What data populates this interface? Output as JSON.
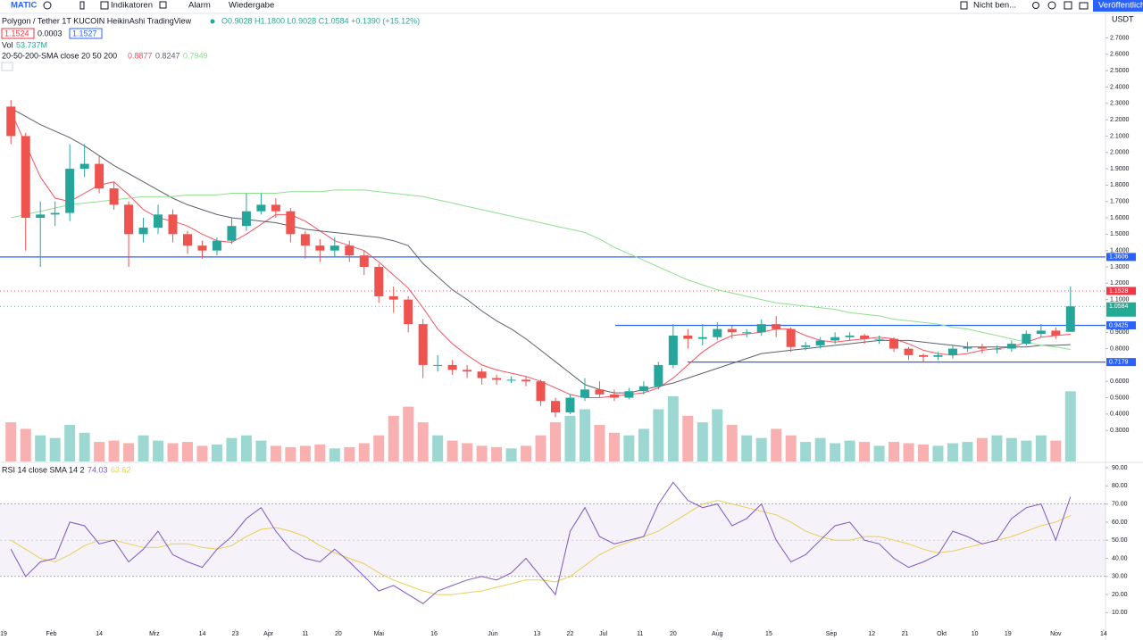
{
  "toolbar": {
    "symbol": "MATIC",
    "indicators": "Indikatoren",
    "alert": "Alarm",
    "replay": "Wiedergabe",
    "save": "Nicht ben...",
    "publish": "Veröffentlich"
  },
  "currency": "USDT",
  "chart_data": [
    {
      "type": "candlestick",
      "title": "Polygon / Tether   1T   KUCOIN   HeikinAshi   TradingView",
      "ohlc": "O0.9028 H1.1800 L0.9028 C1.0584 +0.1390 (+15.12%)",
      "price_boxes": [
        "1.1524",
        "0.0003",
        "1.1527"
      ],
      "up_color": "#26a69a",
      "down_color": "#ef5350",
      "open": [
        2.28,
        2.1,
        1.6,
        1.62,
        1.63,
        1.9,
        1.93,
        1.78,
        1.68,
        1.5,
        1.54,
        1.62,
        1.5,
        1.43,
        1.4,
        1.46,
        1.55,
        1.64,
        1.68,
        1.64,
        1.5,
        1.43,
        1.4,
        1.43,
        1.37,
        1.3,
        1.12,
        1.1,
        0.95,
        0.7,
        0.7,
        0.67,
        0.66,
        0.62,
        0.61,
        0.61,
        0.6,
        0.48,
        0.41,
        0.5,
        0.55,
        0.52,
        0.5,
        0.54,
        0.57,
        0.7,
        0.88,
        0.86,
        0.87,
        0.92,
        0.9,
        0.9,
        0.95,
        0.92,
        0.81,
        0.82,
        0.85,
        0.87,
        0.88,
        0.86,
        0.86,
        0.8,
        0.76,
        0.75,
        0.76,
        0.8,
        0.81,
        0.8,
        0.8,
        0.83,
        0.89,
        0.91,
        0.9028
      ],
      "high": [
        2.32,
        2.12,
        1.7,
        1.7,
        2.05,
        2.05,
        1.98,
        1.82,
        1.7,
        1.6,
        1.68,
        1.65,
        1.52,
        1.46,
        1.48,
        1.6,
        1.75,
        1.75,
        1.72,
        1.66,
        1.52,
        1.47,
        1.48,
        1.46,
        1.4,
        1.32,
        1.18,
        1.12,
        0.98,
        0.76,
        0.73,
        0.7,
        0.68,
        0.64,
        0.63,
        0.63,
        0.61,
        0.5,
        0.52,
        0.62,
        0.6,
        0.55,
        0.56,
        0.6,
        0.72,
        0.95,
        0.92,
        0.95,
        0.96,
        0.94,
        0.92,
        0.98,
        1.0,
        0.93,
        0.84,
        0.87,
        0.9,
        0.9,
        0.89,
        0.88,
        0.87,
        0.81,
        0.77,
        0.78,
        0.82,
        0.84,
        0.83,
        0.82,
        0.85,
        0.91,
        0.95,
        0.93,
        1.18
      ],
      "low": [
        2.05,
        1.4,
        1.3,
        1.55,
        1.58,
        1.85,
        1.75,
        1.65,
        1.3,
        1.45,
        1.5,
        1.45,
        1.38,
        1.35,
        1.37,
        1.44,
        1.52,
        1.62,
        1.6,
        1.45,
        1.35,
        1.33,
        1.36,
        1.33,
        1.25,
        1.08,
        1.02,
        0.9,
        0.62,
        0.66,
        0.64,
        0.62,
        0.58,
        0.58,
        0.59,
        0.57,
        0.45,
        0.38,
        0.4,
        0.48,
        0.5,
        0.48,
        0.49,
        0.52,
        0.55,
        0.68,
        0.8,
        0.82,
        0.85,
        0.86,
        0.87,
        0.88,
        0.87,
        0.78,
        0.79,
        0.8,
        0.83,
        0.85,
        0.83,
        0.83,
        0.78,
        0.73,
        0.72,
        0.73,
        0.74,
        0.78,
        0.77,
        0.77,
        0.78,
        0.82,
        0.87,
        0.86,
        0.9028
      ],
      "close": [
        2.1,
        1.6,
        1.62,
        1.63,
        1.9,
        1.93,
        1.78,
        1.68,
        1.5,
        1.54,
        1.62,
        1.5,
        1.43,
        1.4,
        1.46,
        1.55,
        1.64,
        1.68,
        1.64,
        1.5,
        1.43,
        1.4,
        1.43,
        1.37,
        1.3,
        1.12,
        1.1,
        0.95,
        0.7,
        0.7,
        0.67,
        0.66,
        0.62,
        0.61,
        0.61,
        0.6,
        0.48,
        0.41,
        0.5,
        0.55,
        0.52,
        0.5,
        0.54,
        0.57,
        0.7,
        0.88,
        0.86,
        0.87,
        0.92,
        0.9,
        0.9,
        0.95,
        0.92,
        0.81,
        0.82,
        0.85,
        0.87,
        0.88,
        0.86,
        0.86,
        0.8,
        0.76,
        0.75,
        0.76,
        0.8,
        0.81,
        0.8,
        0.8,
        0.83,
        0.89,
        0.91,
        0.88,
        1.0584
      ],
      "indicator_label": "20-50-200-SMA close 20 50 200",
      "series": [
        {
          "color": "#f7525f",
          "values": [
            2.25,
            2.05,
            1.85,
            1.72,
            1.7,
            1.75,
            1.8,
            1.82,
            1.74,
            1.65,
            1.6,
            1.58,
            1.55,
            1.5,
            1.46,
            1.45,
            1.5,
            1.56,
            1.62,
            1.62,
            1.58,
            1.52,
            1.46,
            1.43,
            1.4,
            1.33,
            1.25,
            1.17,
            1.05,
            0.92,
            0.83,
            0.76,
            0.7,
            0.67,
            0.65,
            0.63,
            0.6,
            0.56,
            0.52,
            0.5,
            0.5,
            0.51,
            0.52,
            0.53,
            0.56,
            0.62,
            0.7,
            0.78,
            0.84,
            0.88,
            0.89,
            0.9,
            0.92,
            0.92,
            0.88,
            0.85,
            0.84,
            0.85,
            0.86,
            0.87,
            0.86,
            0.83,
            0.79,
            0.77,
            0.76,
            0.77,
            0.79,
            0.8,
            0.81,
            0.84,
            0.87,
            0.88,
            0.8877
          ]
        },
        {
          "color": "#5d606b",
          "values": [
            2.27,
            2.22,
            2.17,
            2.13,
            2.09,
            2.04,
            1.98,
            1.92,
            1.87,
            1.82,
            1.77,
            1.72,
            1.68,
            1.65,
            1.62,
            1.6,
            1.59,
            1.58,
            1.57,
            1.55,
            1.53,
            1.52,
            1.51,
            1.5,
            1.49,
            1.48,
            1.46,
            1.43,
            1.32,
            1.24,
            1.16,
            1.1,
            1.03,
            0.97,
            0.92,
            0.86,
            0.79,
            0.72,
            0.65,
            0.58,
            0.55,
            0.53,
            0.53,
            0.55,
            0.57,
            0.59,
            0.62,
            0.65,
            0.68,
            0.71,
            0.74,
            0.77,
            0.78,
            0.79,
            0.8,
            0.81,
            0.82,
            0.83,
            0.84,
            0.85,
            0.85,
            0.85,
            0.84,
            0.83,
            0.82,
            0.81,
            0.81,
            0.81,
            0.81,
            0.81,
            0.82,
            0.82,
            0.8247
          ]
        },
        {
          "color": "#8fe08f",
          "values": [
            1.6,
            1.62,
            1.64,
            1.66,
            1.68,
            1.69,
            1.7,
            1.71,
            1.72,
            1.73,
            1.73,
            1.73,
            1.74,
            1.74,
            1.74,
            1.75,
            1.75,
            1.75,
            1.75,
            1.76,
            1.76,
            1.76,
            1.77,
            1.77,
            1.77,
            1.76,
            1.75,
            1.74,
            1.73,
            1.71,
            1.69,
            1.67,
            1.65,
            1.63,
            1.61,
            1.59,
            1.57,
            1.55,
            1.53,
            1.51,
            1.47,
            1.42,
            1.38,
            1.34,
            1.3,
            1.26,
            1.22,
            1.19,
            1.16,
            1.14,
            1.12,
            1.1,
            1.08,
            1.07,
            1.06,
            1.05,
            1.04,
            1.02,
            1.01,
            1.0,
            0.98,
            0.97,
            0.96,
            0.95,
            0.93,
            0.92,
            0.9,
            0.88,
            0.86,
            0.84,
            0.82,
            0.81,
            0.7949
          ]
        }
      ],
      "levels": [
        {
          "value": 1.3606,
          "color": "#2962ff"
        },
        {
          "value": 0.9425,
          "color": "#2962ff"
        },
        {
          "value": 0.7179,
          "color": "#2962ff"
        }
      ],
      "price_labels": [
        {
          "value": 1.1528,
          "color": "#f23645"
        },
        {
          "value": 1.0584,
          "color": "#22ab94"
        }
      ],
      "ylim": [
        0.11,
        2.85
      ],
      "yticks": [
        {
          "value": 2.7,
          "label": "2.7000"
        },
        {
          "value": 2.6,
          "label": "2.6000"
        },
        {
          "value": 2.5,
          "label": "2.5000"
        },
        {
          "value": 2.4,
          "label": "2.4000"
        },
        {
          "value": 2.3,
          "label": "2.3000"
        },
        {
          "value": 2.2,
          "label": "2.2000"
        },
        {
          "value": 2.1,
          "label": "2.1000"
        },
        {
          "value": 2.0,
          "label": "2.0000"
        },
        {
          "value": 1.9,
          "label": "1.9000"
        },
        {
          "value": 1.8,
          "label": "1.8000"
        },
        {
          "value": 1.7,
          "label": "1.7000"
        },
        {
          "value": 1.6,
          "label": "1.6000"
        },
        {
          "value": 1.5,
          "label": "1.5000"
        },
        {
          "value": 1.4,
          "label": "1.4000"
        },
        {
          "value": 1.3,
          "label": "1.3000"
        },
        {
          "value": 1.2,
          "label": "1.2000"
        },
        {
          "value": 1.1,
          "label": "1.1000"
        },
        {
          "value": 0.9,
          "label": "0.9000"
        },
        {
          "value": 0.8,
          "label": "0.8000"
        },
        {
          "value": 0.6,
          "label": "0.6000"
        },
        {
          "value": 0.5,
          "label": "0.5000"
        },
        {
          "value": 0.4,
          "label": "0.4000"
        },
        {
          "value": 0.3,
          "label": "0.3000"
        }
      ]
    },
    {
      "type": "bar",
      "legend_label": "Vol",
      "legend_value": "53.737M",
      "ylim": [
        0,
        54
      ],
      "values": [
        30,
        25,
        20,
        18,
        28,
        22,
        15,
        16,
        14,
        20,
        16,
        14,
        15,
        12,
        13,
        18,
        20,
        16,
        12,
        11,
        12,
        13,
        10,
        11,
        14,
        20,
        35,
        42,
        30,
        20,
        16,
        14,
        12,
        11,
        10,
        12,
        20,
        30,
        35,
        40,
        28,
        22,
        20,
        25,
        40,
        50,
        35,
        30,
        40,
        28,
        20,
        18,
        25,
        20,
        15,
        18,
        14,
        16,
        15,
        12,
        15,
        14,
        13,
        12,
        14,
        15,
        18,
        20,
        18,
        16,
        20,
        16,
        53.737
      ]
    },
    {
      "type": "line",
      "title": "RSI 14 close SMA 14 2",
      "series": [
        {
          "color": "#7e57c2",
          "values": [
            45,
            30,
            38,
            40,
            60,
            58,
            48,
            50,
            38,
            45,
            55,
            42,
            38,
            35,
            45,
            52,
            62,
            68,
            55,
            45,
            40,
            38,
            45,
            38,
            30,
            22,
            25,
            20,
            15,
            22,
            25,
            28,
            30,
            28,
            32,
            40,
            30,
            20,
            55,
            68,
            52,
            48,
            50,
            52,
            70,
            82,
            72,
            68,
            70,
            58,
            62,
            70,
            50,
            38,
            42,
            50,
            58,
            60,
            50,
            48,
            40,
            35,
            38,
            42,
            55,
            52,
            48,
            50,
            62,
            68,
            70,
            50,
            74.03
          ]
        },
        {
          "color": "#e8cf55",
          "values": [
            50,
            45,
            40,
            38,
            42,
            47,
            50,
            50,
            48,
            46,
            46,
            48,
            48,
            46,
            45,
            47,
            52,
            56,
            57,
            55,
            52,
            47,
            43,
            40,
            37,
            32,
            28,
            25,
            22,
            20,
            20,
            21,
            22,
            24,
            26,
            28,
            28,
            27,
            30,
            36,
            42,
            46,
            49,
            52,
            55,
            60,
            65,
            70,
            72,
            70,
            68,
            66,
            64,
            60,
            55,
            52,
            50,
            50,
            52,
            52,
            50,
            48,
            45,
            43,
            44,
            46,
            48,
            50,
            52,
            55,
            58,
            60,
            63.62
          ]
        }
      ],
      "band": [
        30,
        70
      ],
      "midline": 50,
      "band_color": "#7e57c2",
      "ylim": [
        0.8,
        92.5
      ],
      "yticks": [
        {
          "value": 90,
          "label": "90.00"
        },
        {
          "value": 80,
          "label": "80.00"
        },
        {
          "value": 70,
          "label": "70.00"
        },
        {
          "value": 60,
          "label": "60.00"
        },
        {
          "value": 50,
          "label": "50.00"
        },
        {
          "value": 40,
          "label": "40.00"
        },
        {
          "value": 30,
          "label": "30.00"
        },
        {
          "value": 20,
          "label": "20.00"
        },
        {
          "value": 10,
          "label": "10.00"
        }
      ],
      "xticks": [
        {
          "value": 0,
          "label": "19"
        },
        {
          "value": 3.25,
          "label": "Feb"
        },
        {
          "value": 6.5,
          "label": "14"
        },
        {
          "value": 10.25,
          "label": "Mrz"
        },
        {
          "value": 13.5,
          "label": "14"
        },
        {
          "value": 15.75,
          "label": "23"
        },
        {
          "value": 18,
          "label": "Apr"
        },
        {
          "value": 20.5,
          "label": "11"
        },
        {
          "value": 22.75,
          "label": "20"
        },
        {
          "value": 25.5,
          "label": "Mai"
        },
        {
          "value": 29.25,
          "label": "16"
        },
        {
          "value": 33.25,
          "label": "Jun"
        },
        {
          "value": 36.25,
          "label": "13"
        },
        {
          "value": 38.5,
          "label": "22"
        },
        {
          "value": 40.75,
          "label": "Jul"
        },
        {
          "value": 43.25,
          "label": "11"
        },
        {
          "value": 45.5,
          "label": "20"
        },
        {
          "value": 48.5,
          "label": "Aug"
        },
        {
          "value": 52,
          "label": "15"
        },
        {
          "value": 56.25,
          "label": "Sep"
        },
        {
          "value": 59,
          "label": "12"
        },
        {
          "value": 61.25,
          "label": "21"
        },
        {
          "value": 63.75,
          "label": "Okt"
        },
        {
          "value": 66,
          "label": "10"
        },
        {
          "value": 68.25,
          "label": "19"
        },
        {
          "value": 71.5,
          "label": "Nov"
        },
        {
          "value": 74.75,
          "label": "14"
        }
      ]
    }
  ]
}
